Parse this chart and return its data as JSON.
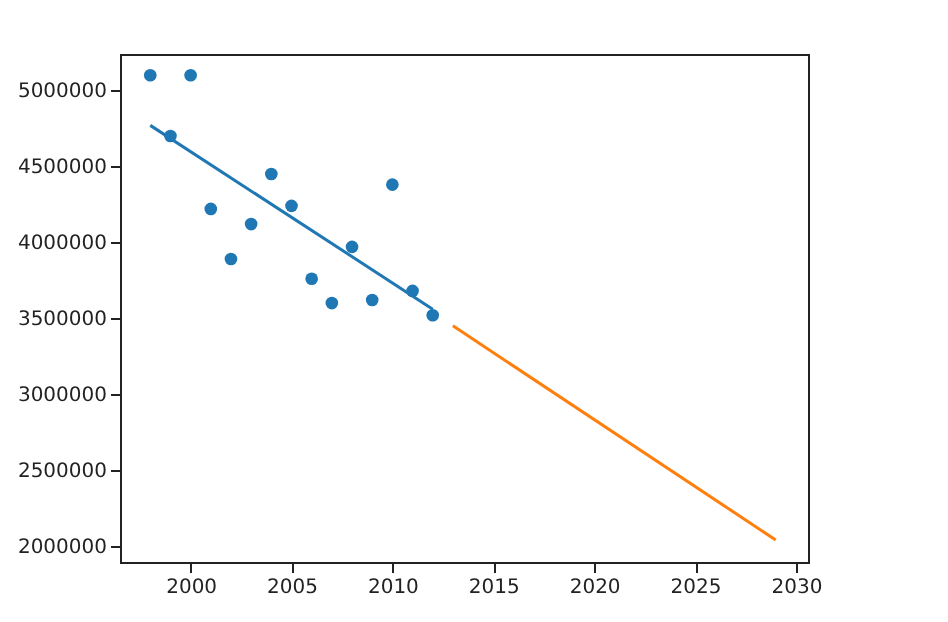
{
  "chart_data": {
    "type": "scatter",
    "series": [
      {
        "color": "#1f77b4",
        "x": [
          1998,
          1999,
          2000,
          2001,
          2002,
          2003,
          2004,
          2005,
          2006,
          2007,
          2008,
          2009,
          2010,
          2011,
          2012
        ],
        "values": [
          5100000,
          4700000,
          5100000,
          4220000,
          3890000,
          4120000,
          4450000,
          4240000,
          3760000,
          3600000,
          3970000,
          3620000,
          4380000,
          3680000,
          3520000
        ]
      },
      {
        "type": "line",
        "color": "#1f77b4",
        "x": [
          1998,
          2012
        ],
        "values": [
          4770000,
          3560000
        ]
      },
      {
        "type": "line",
        "color": "#ff7f0e",
        "x": [
          2013,
          2029
        ],
        "values": [
          3450000,
          2040000
        ]
      }
    ],
    "xlim": [
      1996.5,
      2030.6
    ],
    "xticks": [
      2000,
      2005,
      2010,
      2015,
      2020,
      2025,
      2030
    ],
    "ylim": [
      1895000,
      5240000
    ],
    "yticks": [
      2000000,
      2500000,
      3000000,
      3500000,
      4000000,
      4500000,
      5000000
    ],
    "grid": false
  }
}
